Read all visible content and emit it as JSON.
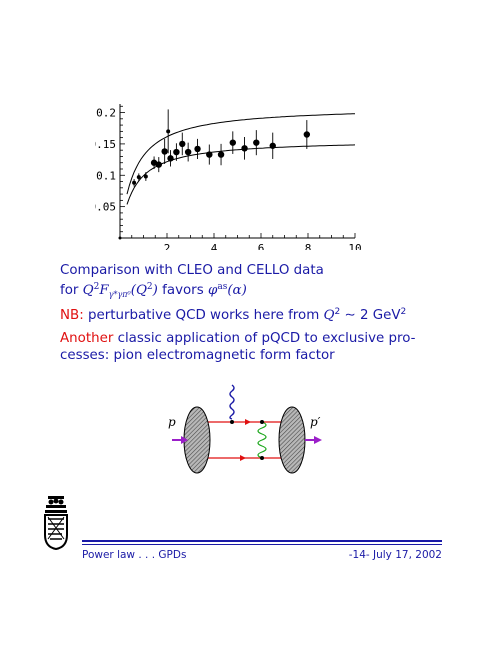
{
  "chart_data": {
    "type": "scatter",
    "title": "",
    "xlabel": "",
    "ylabel": "",
    "xlim": [
      0,
      10
    ],
    "ylim": [
      0,
      0.22
    ],
    "x_ticks": [
      "2",
      "4",
      "6",
      "8",
      "10"
    ],
    "y_ticks": [
      "0.05",
      "0.1",
      "0.15",
      "0.2"
    ],
    "x_tick_values": [
      2,
      4,
      6,
      8,
      10
    ],
    "y_tick_values": [
      0.05,
      0.1,
      0.15,
      0.2
    ],
    "points": [
      {
        "x": 0.6,
        "y": 0.088,
        "err": 0.006,
        "size": "small"
      },
      {
        "x": 0.8,
        "y": 0.097,
        "err": 0.006,
        "size": "small"
      },
      {
        "x": 1.1,
        "y": 0.098,
        "err": 0.007,
        "size": "small"
      },
      {
        "x": 1.45,
        "y": 0.12,
        "err": 0.01,
        "size": "large"
      },
      {
        "x": 1.65,
        "y": 0.117,
        "err": 0.012,
        "size": "large"
      },
      {
        "x": 1.9,
        "y": 0.138,
        "err": 0.02,
        "size": "large"
      },
      {
        "x": 2.05,
        "y": 0.17,
        "err": 0.035,
        "size": "small"
      },
      {
        "x": 2.15,
        "y": 0.127,
        "err": 0.013,
        "size": "large"
      },
      {
        "x": 2.4,
        "y": 0.137,
        "err": 0.014,
        "size": "large"
      },
      {
        "x": 2.65,
        "y": 0.15,
        "err": 0.018,
        "size": "large"
      },
      {
        "x": 2.9,
        "y": 0.137,
        "err": 0.015,
        "size": "large"
      },
      {
        "x": 3.3,
        "y": 0.142,
        "err": 0.016,
        "size": "large"
      },
      {
        "x": 3.8,
        "y": 0.133,
        "err": 0.016,
        "size": "large"
      },
      {
        "x": 4.3,
        "y": 0.133,
        "err": 0.017,
        "size": "large"
      },
      {
        "x": 4.8,
        "y": 0.152,
        "err": 0.018,
        "size": "large"
      },
      {
        "x": 5.3,
        "y": 0.143,
        "err": 0.018,
        "size": "large"
      },
      {
        "x": 5.8,
        "y": 0.152,
        "err": 0.02,
        "size": "large"
      },
      {
        "x": 6.5,
        "y": 0.147,
        "err": 0.021,
        "size": "large"
      },
      {
        "x": 7.95,
        "y": 0.165,
        "err": 0.023,
        "size": "large"
      }
    ],
    "curves": [
      {
        "role": "upper",
        "asymptote": 0.21,
        "scale": 0.6
      },
      {
        "role": "lower",
        "asymptote": 0.157,
        "scale": 0.58
      }
    ]
  },
  "text": {
    "line1": "Comparison with CLEO and CELLO data",
    "line2_pre": "for ",
    "line2_math1": "Q",
    "line2_sup1": "2",
    "line2_math2": "F",
    "line2_sub": "γ*γπ⁰",
    "line2_math3": "(Q",
    "line2_sup2": "2",
    "line2_math4": ")",
    "line2_mid": " favors ",
    "line2_math5": "φ",
    "line2_sup3": "as",
    "line2_math6": "(α)",
    "nb_label": "NB:",
    "nb_text": " perturbative QCD works here from ",
    "nb_math": "Q",
    "nb_sup": "2",
    "nb_tail": " ∼ 2 GeV",
    "nb_tail_sup": "2",
    "another_label": "Another",
    "another_text1": " classic application of pQCD to exclusive pro-",
    "another_text2": "cesses: pion electromagnetic form factor"
  },
  "diagram": {
    "label_in": "p",
    "label_out": "p′"
  },
  "footer": {
    "left": "Power law . . . GPDs",
    "right": "-14-   July 17, 2002"
  },
  "colors": {
    "text_blue": "#1a1aa6",
    "accent_red": "#e01010",
    "arrow_purple": "#9b1fc9",
    "photon_blue": "#1a1aa6"
  }
}
